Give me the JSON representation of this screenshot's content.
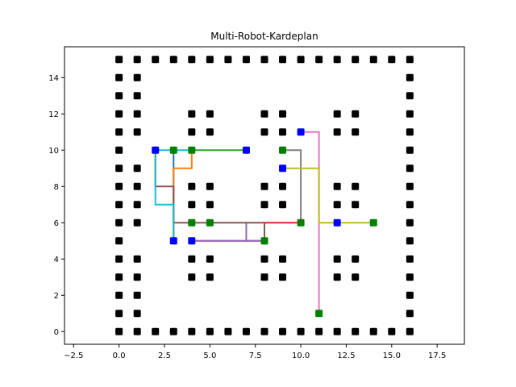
{
  "chart_data": {
    "type": "scatter",
    "title": "Multi-Robot-Kardeplan",
    "xlabel": "",
    "ylabel": "",
    "xlim": [
      -3.0,
      19.0
    ],
    "ylim": [
      -0.7,
      15.7
    ],
    "xticks": [
      -2.5,
      0.0,
      2.5,
      5.0,
      7.5,
      10.0,
      12.5,
      15.0,
      17.5
    ],
    "xtick_labels": [
      "−2.5",
      "0.0",
      "2.5",
      "5.0",
      "7.5",
      "10.0",
      "12.5",
      "15.0",
      "17.5"
    ],
    "yticks": [
      0,
      2,
      4,
      6,
      8,
      10,
      12,
      14
    ],
    "ytick_labels": [
      "0",
      "2",
      "4",
      "6",
      "8",
      "10",
      "12",
      "14"
    ],
    "grid": false,
    "obstacles": {
      "color": "#000000",
      "points": [
        [
          0,
          0
        ],
        [
          1,
          0
        ],
        [
          2,
          0
        ],
        [
          3,
          0
        ],
        [
          4,
          0
        ],
        [
          5,
          0
        ],
        [
          6,
          0
        ],
        [
          7,
          0
        ],
        [
          8,
          0
        ],
        [
          9,
          0
        ],
        [
          10,
          0
        ],
        [
          11,
          0
        ],
        [
          12,
          0
        ],
        [
          13,
          0
        ],
        [
          14,
          0
        ],
        [
          15,
          0
        ],
        [
          16,
          0
        ],
        [
          0,
          15
        ],
        [
          1,
          15
        ],
        [
          2,
          15
        ],
        [
          3,
          15
        ],
        [
          4,
          15
        ],
        [
          5,
          15
        ],
        [
          6,
          15
        ],
        [
          7,
          15
        ],
        [
          8,
          15
        ],
        [
          9,
          15
        ],
        [
          10,
          15
        ],
        [
          11,
          15
        ],
        [
          12,
          15
        ],
        [
          13,
          15
        ],
        [
          14,
          15
        ],
        [
          15,
          15
        ],
        [
          16,
          15
        ],
        [
          0,
          1
        ],
        [
          0,
          2
        ],
        [
          0,
          3
        ],
        [
          0,
          4
        ],
        [
          0,
          5
        ],
        [
          0,
          6
        ],
        [
          0,
          7
        ],
        [
          0,
          8
        ],
        [
          0,
          9
        ],
        [
          0,
          10
        ],
        [
          0,
          11
        ],
        [
          0,
          12
        ],
        [
          0,
          13
        ],
        [
          0,
          14
        ],
        [
          16,
          1
        ],
        [
          16,
          2
        ],
        [
          16,
          3
        ],
        [
          16,
          4
        ],
        [
          16,
          5
        ],
        [
          16,
          6
        ],
        [
          16,
          7
        ],
        [
          16,
          8
        ],
        [
          16,
          9
        ],
        [
          16,
          10
        ],
        [
          16,
          11
        ],
        [
          16,
          12
        ],
        [
          16,
          13
        ],
        [
          16,
          14
        ],
        [
          1,
          1
        ],
        [
          1,
          2
        ],
        [
          1,
          3
        ],
        [
          1,
          4
        ],
        [
          1,
          6
        ],
        [
          1,
          7
        ],
        [
          1,
          8
        ],
        [
          1,
          9
        ],
        [
          1,
          11
        ],
        [
          1,
          12
        ],
        [
          1,
          13
        ],
        [
          1,
          14
        ],
        [
          4,
          3
        ],
        [
          4,
          4
        ],
        [
          5,
          3
        ],
        [
          5,
          4
        ],
        [
          4,
          7
        ],
        [
          4,
          8
        ],
        [
          5,
          7
        ],
        [
          5,
          8
        ],
        [
          4,
          11
        ],
        [
          4,
          12
        ],
        [
          5,
          11
        ],
        [
          5,
          12
        ],
        [
          8,
          3
        ],
        [
          8,
          4
        ],
        [
          9,
          3
        ],
        [
          9,
          4
        ],
        [
          8,
          7
        ],
        [
          8,
          8
        ],
        [
          9,
          7
        ],
        [
          9,
          8
        ],
        [
          8,
          11
        ],
        [
          8,
          12
        ],
        [
          9,
          11
        ],
        [
          9,
          12
        ],
        [
          12,
          3
        ],
        [
          12,
          4
        ],
        [
          13,
          3
        ],
        [
          13,
          4
        ],
        [
          12,
          7
        ],
        [
          12,
          8
        ],
        [
          13,
          7
        ],
        [
          13,
          8
        ],
        [
          12,
          11
        ],
        [
          12,
          12
        ],
        [
          13,
          11
        ],
        [
          13,
          12
        ]
      ]
    },
    "start_color": "#0000ff",
    "goal_color": "#008000",
    "paths": [
      {
        "color": "#1f77b4",
        "points": [
          [
            3,
            5
          ],
          [
            3,
            10
          ]
        ]
      },
      {
        "color": "#ff7f0e",
        "points": [
          [
            3,
            5
          ],
          [
            3,
            9
          ],
          [
            4,
            9
          ],
          [
            4,
            10
          ]
        ]
      },
      {
        "color": "#2ca02c",
        "points": [
          [
            7,
            10
          ],
          [
            4,
            10
          ]
        ]
      },
      {
        "color": "#d62728",
        "points": [
          [
            4,
            5
          ],
          [
            8,
            5
          ],
          [
            8,
            6
          ],
          [
            10,
            6
          ]
        ]
      },
      {
        "color": "#9467bd",
        "points": [
          [
            4,
            5
          ],
          [
            7,
            5
          ],
          [
            7,
            6
          ],
          [
            7,
            5
          ],
          [
            8,
            5
          ]
        ]
      },
      {
        "color": "#8c564b",
        "points": [
          [
            2,
            10
          ],
          [
            2,
            8
          ],
          [
            3,
            8
          ],
          [
            3,
            6
          ],
          [
            5,
            6
          ],
          [
            8,
            6
          ],
          [
            8,
            5
          ]
        ]
      },
      {
        "color": "#e377c2",
        "points": [
          [
            10,
            11
          ],
          [
            11,
            11
          ],
          [
            11,
            1
          ]
        ]
      },
      {
        "color": "#7f7f7f",
        "points": [
          [
            9,
            10
          ],
          [
            10,
            10
          ],
          [
            10,
            6
          ]
        ]
      },
      {
        "color": "#bcbd22",
        "points": [
          [
            9,
            9
          ],
          [
            11,
            9
          ],
          [
            11,
            6
          ],
          [
            14,
            6
          ]
        ]
      },
      {
        "color": "#17becf",
        "points": [
          [
            3,
            5
          ],
          [
            3,
            7
          ],
          [
            2,
            7
          ],
          [
            2,
            10
          ],
          [
            4,
            10
          ]
        ]
      }
    ],
    "starts": [
      [
        2,
        10
      ],
      [
        7,
        10
      ],
      [
        3,
        5
      ],
      [
        4,
        5
      ],
      [
        12,
        6
      ],
      [
        9,
        9
      ],
      [
        10,
        11
      ]
    ],
    "goals": [
      [
        3,
        10
      ],
      [
        4,
        10
      ],
      [
        4,
        6
      ],
      [
        5,
        6
      ],
      [
        8,
        5
      ],
      [
        9,
        10
      ],
      [
        10,
        6
      ],
      [
        14,
        6
      ],
      [
        11,
        1
      ]
    ]
  }
}
